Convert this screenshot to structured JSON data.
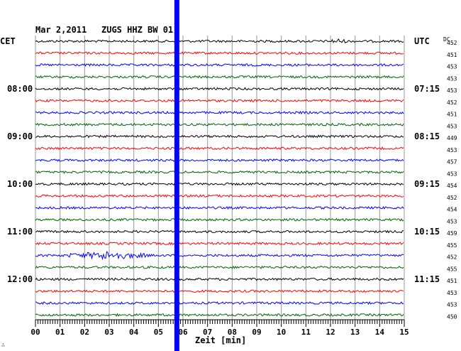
{
  "header": {
    "date": "Mar 2,2011",
    "station": "ZUGS HHZ BW 01",
    "left_zone": "CET",
    "right_zone": "UTC",
    "dc_label": "DC",
    "corner_mark": "∴"
  },
  "chart_data": {
    "type": "line",
    "title": "Mar 2,2011   ZUGS HHZ BW 01",
    "xlabel": "Zeit [min]",
    "ylabel": "",
    "x_ticks": [
      "00",
      "01",
      "02",
      "03",
      "04",
      "05",
      "06",
      "07",
      "08",
      "09",
      "10",
      "11",
      "12",
      "13",
      "14",
      "15"
    ],
    "xlim": [
      0,
      15
    ],
    "grid": true,
    "trace_colors": [
      "#000000",
      "#ff0000",
      "#0000ff",
      "#006400"
    ],
    "left_time_labels": [
      {
        "row": 4,
        "text": "08:00"
      },
      {
        "row": 8,
        "text": "09:00"
      },
      {
        "row": 12,
        "text": "10:00"
      },
      {
        "row": 16,
        "text": "11:00"
      },
      {
        "row": 20,
        "text": "12:00"
      }
    ],
    "right_time_labels": [
      {
        "row": 0,
        "text": "UTC"
      },
      {
        "row": 4,
        "text": "07:15"
      },
      {
        "row": 8,
        "text": "08:15"
      },
      {
        "row": 12,
        "text": "09:15"
      },
      {
        "row": 16,
        "text": "10:15"
      },
      {
        "row": 20,
        "text": "11:15"
      }
    ],
    "dc_values": [
      "452",
      "451",
      "453",
      "453",
      "453",
      "452",
      "451",
      "453",
      "449",
      "453",
      "457",
      "453",
      "454",
      "452",
      "454",
      "453",
      "459",
      "455",
      "452",
      "455",
      "451",
      "453",
      "453",
      "450"
    ],
    "events": [
      {
        "row": 18,
        "x_start": 1.3,
        "x_end": 4.6,
        "amplitude": "large"
      },
      {
        "row": 0,
        "x_start": 11.9,
        "x_end": 12.7,
        "amplitude": "small"
      }
    ],
    "marker": {
      "x_min": 5.75,
      "color": "#0000ff"
    }
  }
}
